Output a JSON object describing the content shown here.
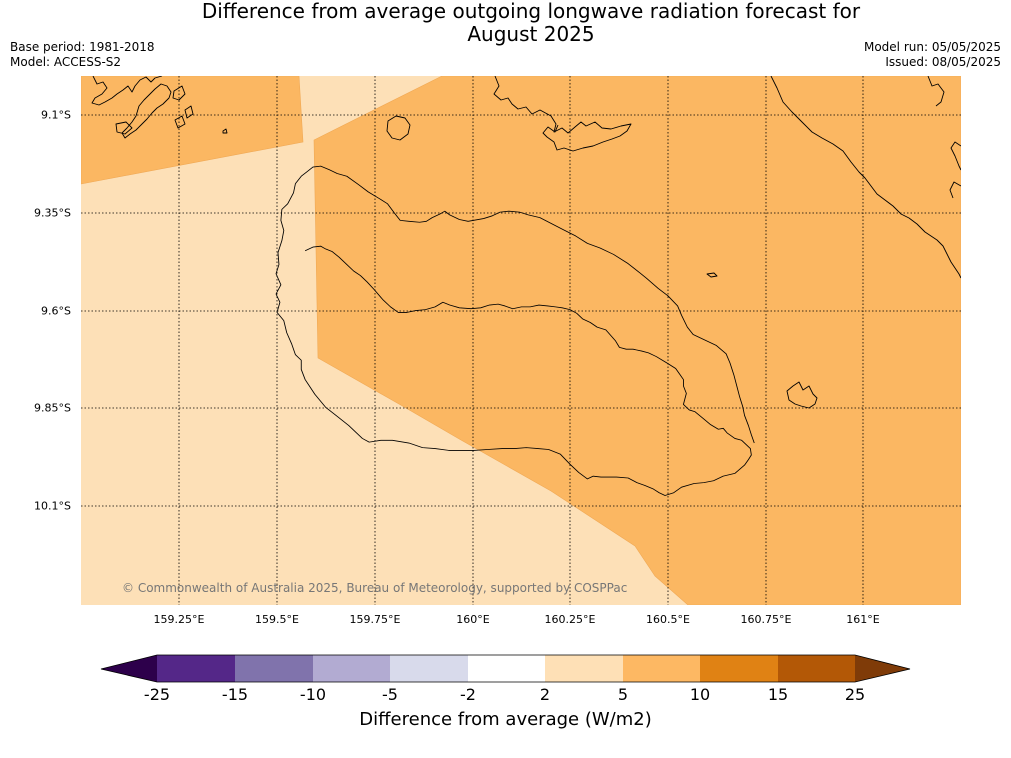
{
  "title": {
    "line1": "Difference from average outgoing longwave radiation forecast for",
    "line2": "August 2025"
  },
  "meta": {
    "base_period": "Base period: 1981-2018",
    "model": "Model: ACCESS-S2",
    "model_run": "Model run: 05/05/2025",
    "issued": "Issued: 08/05/2025"
  },
  "axes": {
    "lat_labels": [
      "9.1°S",
      "9.35°S",
      "9.6°S",
      "9.85°S",
      "10.1°S"
    ],
    "lon_labels": [
      "159.25°E",
      "159.5°E",
      "159.75°E",
      "160°E",
      "160.25°E",
      "160.5°E",
      "160.75°E",
      "161°E"
    ]
  },
  "copyright": "© Commonwealth of Australia 2025, Bureau of Meteorology, supported by COSPPac",
  "colorbar": {
    "label": "Difference from average (W/m2)",
    "ticks": [
      "-25",
      "-15",
      "-10",
      "-5",
      "-2",
      "2",
      "5",
      "10",
      "15",
      "25"
    ],
    "colors": [
      "#2d004b",
      "#542788",
      "#8073ac",
      "#b2abd2",
      "#d8daeb",
      "#ffffff",
      "#fee0b6",
      "#fdb863",
      "#e08214",
      "#b35806",
      "#7f3b08"
    ]
  },
  "map_colors": {
    "band_2_5": "#fde0b7",
    "band_5_10": "#fbb762",
    "coast": "#000000"
  }
}
